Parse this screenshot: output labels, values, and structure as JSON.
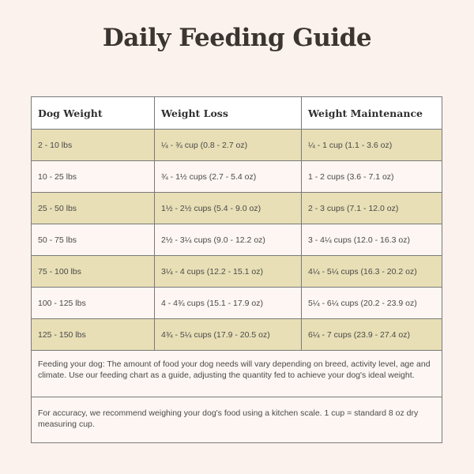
{
  "title": "Daily Feeding Guide",
  "headers": [
    "Dog Weight",
    "Weight Loss",
    "Weight Maintenance"
  ],
  "rows": [
    [
      "2 - 10 lbs",
      "¼ - ¾ cup (0.8 - 2.7 oz)",
      "¼ - 1 cup (1.1 - 3.6 oz)"
    ],
    [
      "10 - 25 lbs",
      "¾ - 1½ cups (2.7 - 5.4 oz)",
      "1 - 2 cups (3.6 - 7.1 oz)"
    ],
    [
      "25 - 50 lbs",
      "1½ - 2½ cups (5.4 - 9.0 oz)",
      "2 - 3 cups (7.1 - 12.0 oz)"
    ],
    [
      "50 - 75 lbs",
      "2½ - 3¼ cups (9.0 - 12.2 oz)",
      "3 - 4¼ cups (12.0 - 16.3 oz)"
    ],
    [
      "75 - 100 lbs",
      "3¼ - 4 cups (12.2 - 15.1 oz)",
      "4¼ - 5¼ cups (16.3 - 20.2 oz)"
    ],
    [
      "100 - 125 lbs",
      "4 - 4¾ cups (15.1 - 17.9 oz)",
      "5¼ - 6¼ cups (20.2 - 23.9 oz)"
    ],
    [
      "125 - 150 lbs",
      "4¾ - 5¼ cups (17.9 - 20.5 oz)",
      "6¼ - 7 cups (23.9 - 27.4 oz)"
    ]
  ],
  "notes": [
    "Feeding your dog: The amount of food your dog needs will vary depending on breed, activity level, age and climate. Use our feeding chart as a guide, adjusting the quantity fed to achieve your dog's ideal weight.",
    "For accuracy, we recommend weighing your dog's food using a kitchen scale. 1 cup = standard 8 oz dry measuring cup."
  ],
  "colors": {
    "background": "#fcf2ed",
    "shaded_row": "#e8dfb6",
    "border": "#7a7a7a"
  }
}
